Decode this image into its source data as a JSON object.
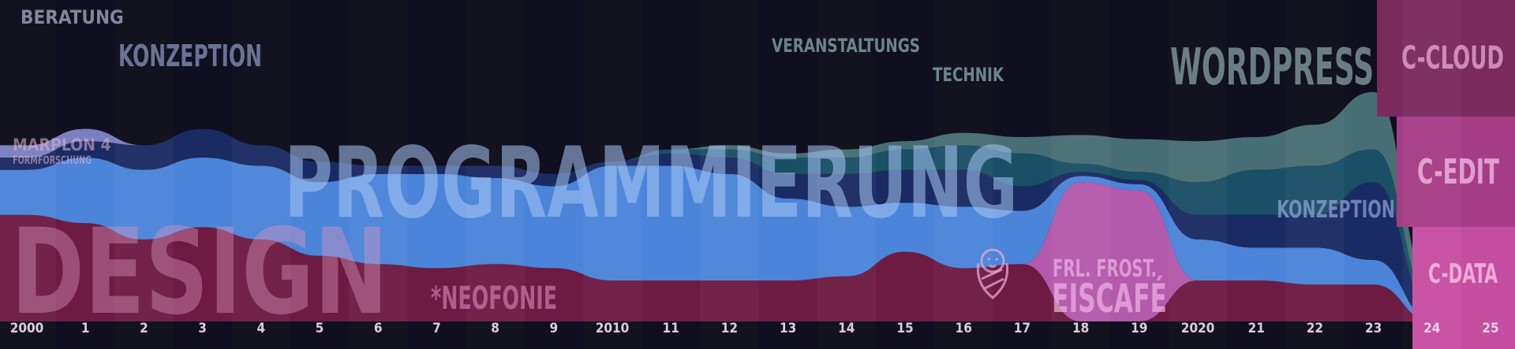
{
  "chart_data": {
    "type": "area",
    "x_ticks": [
      "2000",
      "1",
      "2",
      "3",
      "4",
      "5",
      "6",
      "7",
      "8",
      "9",
      "2010",
      "11",
      "12",
      "13",
      "14",
      "15",
      "16",
      "17",
      "18",
      "19",
      "2020",
      "21",
      "22",
      "23",
      "24",
      "25"
    ],
    "series": [
      {
        "name": "DESIGN",
        "color": "#6e1b43",
        "values": [
          2.6,
          2.4,
          2.0,
          2.3,
          2.0,
          1.6,
          1.4,
          1.3,
          1.4,
          1.3,
          1.0,
          1.0,
          1.0,
          1.0,
          1.1,
          1.7,
          1.3,
          1.4,
          0,
          0,
          1.0,
          1.0,
          0.9,
          0.9,
          0,
          0
        ]
      },
      {
        "name": "FRL. FROST. EISCAFÉ",
        "color": "#b35aac",
        "values": [
          0,
          0,
          0,
          0,
          0,
          0,
          0,
          0,
          0,
          0,
          0,
          0,
          0,
          0,
          0,
          0,
          0,
          0,
          3.4,
          3.2,
          0,
          0,
          0,
          0,
          0,
          0
        ]
      },
      {
        "name": "PROGRAMMIERUNG",
        "color": "#4b84d8",
        "values": [
          1.1,
          1.6,
          1.7,
          1.7,
          1.8,
          1.8,
          2.2,
          2.3,
          2.1,
          2.0,
          2.8,
          2.8,
          2.6,
          2.0,
          1.7,
          1.2,
          1.5,
          1.3,
          0.15,
          0.15,
          1.0,
          0.8,
          0.9,
          0.6,
          0.05,
          0
        ]
      },
      {
        "name": "KONZEPTION",
        "color": "#1a2b63",
        "values": [
          0.3,
          0.4,
          0.6,
          0.7,
          0.5,
          0.5,
          0.2,
          0.2,
          0.3,
          0.3,
          0.1,
          0.3,
          0.4,
          0.6,
          0.8,
          0.8,
          0.9,
          0.6,
          0.1,
          0.1,
          0.6,
          0.8,
          0.8,
          1.9,
          0.25,
          0
        ]
      },
      {
        "name": "WORDPRESS",
        "color": "#1a4f66",
        "values": [
          0,
          0,
          0,
          0,
          0,
          0,
          0,
          0,
          0,
          0,
          0,
          0.1,
          0.2,
          0.4,
          0.4,
          0.5,
          0.6,
          0.8,
          0.2,
          0.2,
          0.8,
          1.1,
          1.2,
          0.8,
          0.2,
          0
        ]
      },
      {
        "name": "",
        "color": "#476e75",
        "values": [
          0,
          0,
          0,
          0,
          0,
          0,
          0,
          0,
          0,
          0,
          0,
          0,
          0.1,
          0.1,
          0.2,
          0.2,
          0.3,
          0.4,
          0.7,
          0.8,
          1.0,
          0.8,
          1.0,
          1.4,
          0.3,
          0
        ]
      },
      {
        "name": "BERATUNG",
        "color": "#7a7fbf",
        "values": [
          0.3,
          0.3,
          0,
          0,
          0,
          0,
          0,
          0,
          0,
          0,
          0,
          0,
          0,
          0,
          0,
          0,
          0,
          0,
          0,
          0,
          0,
          0,
          0,
          0,
          0,
          0
        ]
      }
    ],
    "texts": {
      "beratung": "BERATUNG",
      "konzeption": "KONZEPTION",
      "marplon": "MARPLON 4",
      "formforschung": "FORMFORSCHUNG",
      "design": "DESIGN",
      "programmierung": "PROGRAMMIERUNG",
      "neofonie": "*NEOFONIE",
      "veranstaltungs": "VERANSTALTUNGS",
      "technik": "TECHNIK",
      "wordpress": "WORDPRESS",
      "konzeption2": "KONZEPTION",
      "frost": "FRL. FROST.",
      "eiscafe": "EISCAFÉ",
      "ccloud": "C-CLOUD",
      "cedit": "C-EDIT",
      "cdata": "C-DATA"
    },
    "right_panel": {
      "cloud_color": "#7b2a5e",
      "edit_color": "#a53d86",
      "data_color": "#c64ea0"
    }
  }
}
